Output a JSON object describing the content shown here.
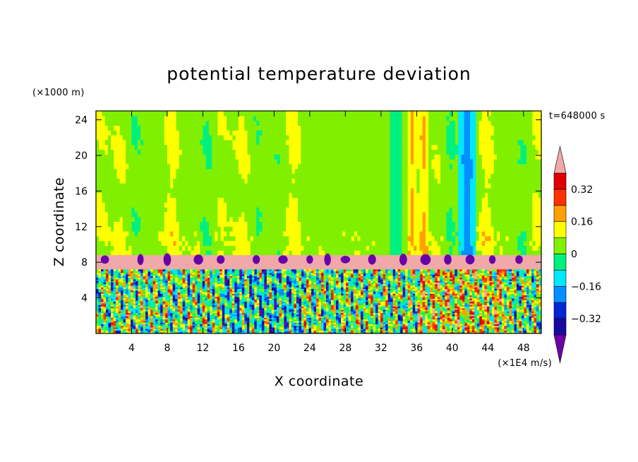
{
  "chart_data": {
    "type": "heatmap",
    "title": "potential temperature deviation",
    "xlabel": "X coordinate",
    "ylabel": "Z coordinate",
    "x_unit": "(×1E4 m/s)",
    "y_unit": "(×1000 m)",
    "time_label": "t=648000 s",
    "xlim": [
      0,
      50
    ],
    "ylim": [
      0,
      25
    ],
    "x_ticks": [
      4,
      8,
      12,
      16,
      20,
      24,
      28,
      32,
      36,
      40,
      44,
      48
    ],
    "y_ticks": [
      4,
      8,
      12,
      16,
      20,
      24
    ],
    "colorbar": {
      "levels": [
        -0.4,
        -0.32,
        -0.24,
        -0.16,
        -0.08,
        0,
        0.08,
        0.16,
        0.24,
        0.32,
        0.4
      ],
      "colors": [
        "#6a00a8",
        "#1a0aa0",
        "#0024d8",
        "#0090ff",
        "#00e8ff",
        "#00f080",
        "#80f000",
        "#ffff00",
        "#ffa000",
        "#ff3000",
        "#e00000",
        "#f0a8a8"
      ],
      "tick_labels": [
        "0.32",
        "0.16",
        "0",
        "−0.16",
        "−0.32"
      ],
      "tick_values": [
        0.32,
        0.16,
        0,
        -0.16,
        -0.32
      ],
      "extend": "both"
    },
    "regions": [
      {
        "z_range": [
          8.8,
          25
        ],
        "dominant_value": 0.05,
        "description_values": [
          0.04,
          0.0,
          0.16
        ]
      },
      {
        "z_range": [
          7.2,
          8.8
        ],
        "dominant_value": 0.4
      },
      {
        "z_range": [
          0,
          7.2
        ],
        "dominant_value": 0.0,
        "range": [
          -0.4,
          0.4
        ]
      }
    ],
    "grid": false,
    "legend": "colorbar-right"
  }
}
